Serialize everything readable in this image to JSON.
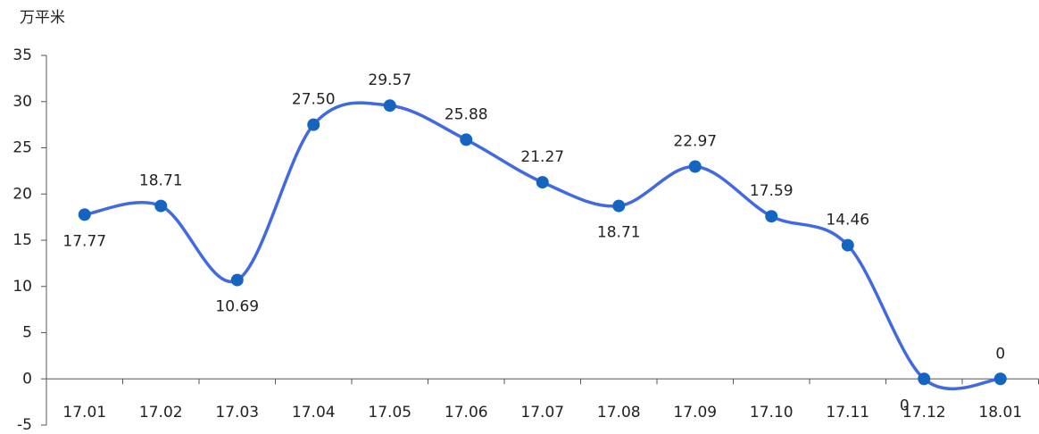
{
  "chart_data": {
    "type": "line",
    "y_label": "万平米",
    "categories": [
      "17.01",
      "17.02",
      "17.03",
      "17.04",
      "17.05",
      "17.06",
      "17.07",
      "17.08",
      "17.09",
      "17.10",
      "17.11",
      "17.12",
      "18.01"
    ],
    "values": [
      17.77,
      18.71,
      10.69,
      27.5,
      29.57,
      25.88,
      21.27,
      18.71,
      22.97,
      17.59,
      14.46,
      0,
      0
    ],
    "value_labels": [
      "17.77",
      "18.71",
      "10.69",
      "27.50",
      "29.57",
      "25.88",
      "21.27",
      "18.71",
      "22.97",
      "17.59",
      "14.46",
      "0",
      "0"
    ],
    "color": "#4169e1",
    "marker_color": "#1565c0",
    "ylim": [
      -5,
      35
    ],
    "yticks": [
      -5,
      0,
      5,
      10,
      15,
      20,
      25,
      30,
      35
    ],
    "grid": false
  }
}
